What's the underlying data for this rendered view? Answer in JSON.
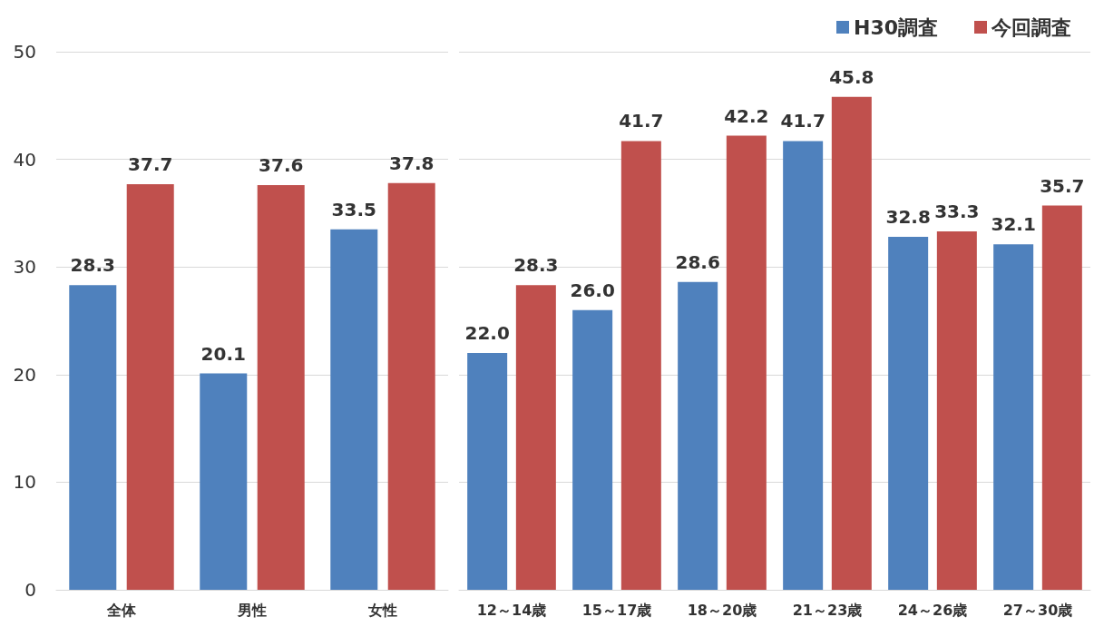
{
  "chart_data": [
    {
      "type": "bar",
      "categories": [
        "全体",
        "男性",
        "女性"
      ],
      "series": [
        {
          "color": "#4f81bd",
          "values": [
            28.3,
            20.1,
            33.5
          ],
          "value_labels": [
            "28.3",
            "20.1",
            "33.5"
          ]
        },
        {
          "color": "#c0504d",
          "values": [
            37.7,
            37.6,
            37.8
          ],
          "value_labels": [
            "37.7",
            "37.6",
            "37.8"
          ]
        }
      ],
      "ylim": [
        0,
        50
      ],
      "yticks": [
        0,
        10,
        20,
        30,
        40,
        50
      ],
      "grid": "y",
      "legend": false
    },
    {
      "type": "bar",
      "categories": [
        "12～14歳",
        "15～17歳",
        "18～20歳",
        "21～23歳",
        "24～26歳",
        "27～30歳"
      ],
      "series": [
        {
          "name": "H30調査",
          "color": "#4f81bd",
          "values": [
            22.0,
            26.0,
            28.6,
            41.7,
            32.8,
            32.1
          ],
          "value_labels": [
            "22.0",
            "26.0",
            "28.6",
            "41.7",
            "32.8",
            "32.1"
          ]
        },
        {
          "name": "今回調査",
          "color": "#c0504d",
          "values": [
            28.3,
            41.7,
            42.2,
            45.8,
            33.3,
            35.7
          ],
          "value_labels": [
            "28.3",
            "41.7",
            "42.2",
            "45.8",
            "33.3",
            "35.7"
          ]
        }
      ],
      "ylim": [
        0,
        50
      ],
      "yticks": [
        0,
        10,
        20,
        30,
        40,
        50
      ],
      "grid": "y",
      "legend": "top right",
      "tick_labels": "x"
    }
  ]
}
